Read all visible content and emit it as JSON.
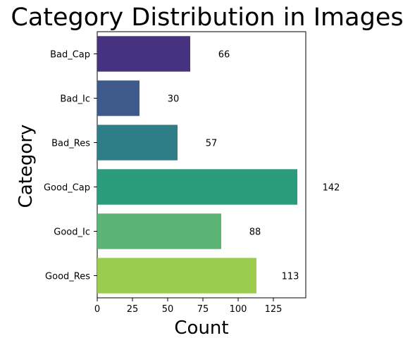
{
  "chart_data": {
    "type": "bar",
    "orientation": "horizontal",
    "title": "Category Distribution in Images",
    "xlabel": "Count",
    "ylabel": "Category",
    "categories": [
      "Bad_Cap",
      "Bad_Ic",
      "Bad_Res",
      "Good_Cap",
      "Good_Ic",
      "Good_Res"
    ],
    "values": [
      66,
      30,
      57,
      142,
      88,
      113
    ],
    "data_labels": [
      "66",
      "30",
      "57",
      "142",
      "88",
      "113"
    ],
    "xlim": [
      0,
      148
    ],
    "x_ticks": [
      0,
      25,
      50,
      75,
      100,
      125
    ],
    "grid": false,
    "legend": "none",
    "colors": [
      "#46327e",
      "#3e5a8c",
      "#2f7d87",
      "#2a9c7c",
      "#5bb474",
      "#9bcb4f"
    ]
  }
}
